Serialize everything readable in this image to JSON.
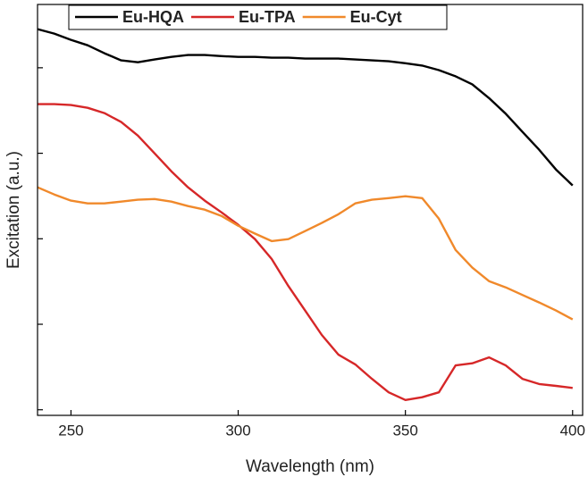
{
  "chart_data": {
    "type": "line",
    "xlabel": "Wavelength (nm)",
    "ylabel": "Excitation (a.u.)",
    "x": [
      240,
      245,
      250,
      255,
      260,
      265,
      270,
      275,
      280,
      285,
      290,
      295,
      300,
      305,
      310,
      315,
      320,
      325,
      330,
      335,
      340,
      345,
      350,
      355,
      360,
      365,
      370,
      375,
      380,
      385,
      390,
      395,
      400
    ],
    "series": [
      {
        "name": "Eu-HQA",
        "color": "#000000",
        "values": [
          28300,
          25100,
          21200,
          18300,
          14800,
          12200,
          11600,
          12500,
          13400,
          14100,
          14100,
          13700,
          13400,
          13400,
          13100,
          13100,
          12800,
          12800,
          12800,
          12500,
          12200,
          11900,
          11300,
          10600,
          9380,
          7950,
          6400,
          4420,
          2900,
          1780,
          1100,
          647,
          420
        ]
      },
      {
        "name": "Eu-TPA",
        "color": "#d62728",
        "values": [
          3750,
          3750,
          3660,
          3400,
          2950,
          2320,
          1610,
          998,
          617,
          400,
          279,
          204,
          146,
          99,
          58,
          28,
          14.5,
          7.5,
          4.4,
          3.4,
          2.3,
          1.6,
          1.3,
          1.4,
          1.6,
          3.3,
          3.5,
          4.1,
          3.3,
          2.3,
          2.0,
          1.9,
          1.8
        ]
      },
      {
        "name": "Eu-Cyt",
        "color": "#f0892b",
        "values": [
          400,
          330,
          279,
          259,
          259,
          272,
          286,
          292,
          272,
          241,
          219,
          185,
          142,
          115,
          94,
          99,
          123,
          153,
          194,
          259,
          286,
          299,
          314,
          299,
          172,
          74,
          46,
          32,
          27,
          22,
          18,
          14.5,
          11.4
        ]
      }
    ],
    "xlim": [
      240,
      403
    ],
    "xticks": [
      250,
      300,
      350,
      400
    ],
    "ylim": [
      0.86,
      55000
    ],
    "yticks": [
      1,
      10,
      100,
      1000,
      10000
    ],
    "ylog": true
  }
}
